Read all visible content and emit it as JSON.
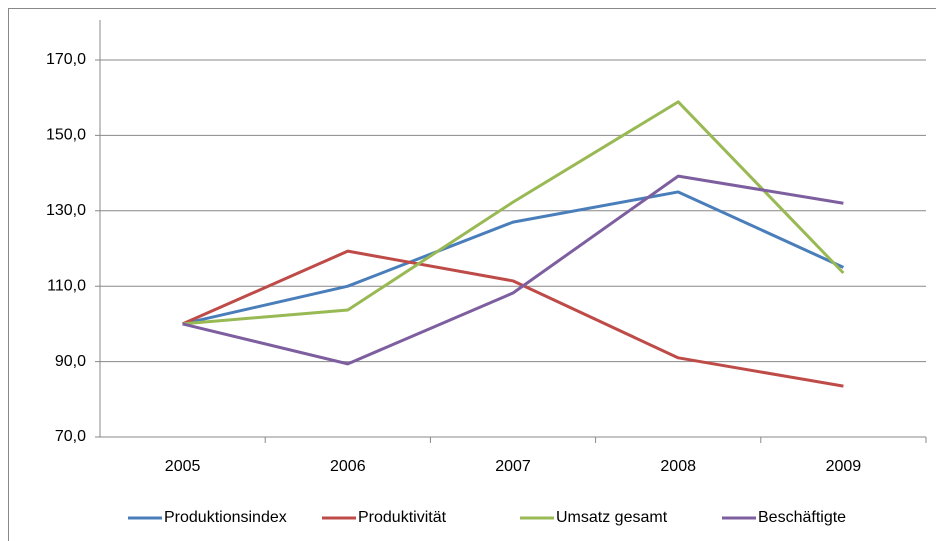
{
  "chart_data": {
    "type": "line",
    "categories": [
      "2005",
      "2006",
      "2007",
      "2008",
      "2009"
    ],
    "series": [
      {
        "name": "Produktionsindex",
        "color": "#4a7ebb",
        "values": [
          100,
          110,
          127,
          135,
          115
        ]
      },
      {
        "name": "Produktivität",
        "color": "#be4b48",
        "values": [
          100,
          119.3,
          111.4,
          91,
          83.5
        ]
      },
      {
        "name": "Umsatz gesamt",
        "color": "#98b954",
        "values": [
          100,
          103.7,
          132.3,
          158.9,
          113.5
        ]
      },
      {
        "name": "Beschäftigte",
        "color": "#7d5fa0",
        "values": [
          100,
          89.4,
          108.2,
          139.2,
          132
        ]
      }
    ],
    "ylim": [
      70,
      170
    ],
    "yticks": [
      {
        "value": 70,
        "label": "70,0"
      },
      {
        "value": 90,
        "label": "90,0"
      },
      {
        "value": 110,
        "label": "110,0"
      },
      {
        "value": 130,
        "label": "130,0"
      },
      {
        "value": 150,
        "label": "150,0"
      },
      {
        "value": 170,
        "label": "170,0"
      }
    ],
    "grid": true,
    "legend": "bottom"
  }
}
